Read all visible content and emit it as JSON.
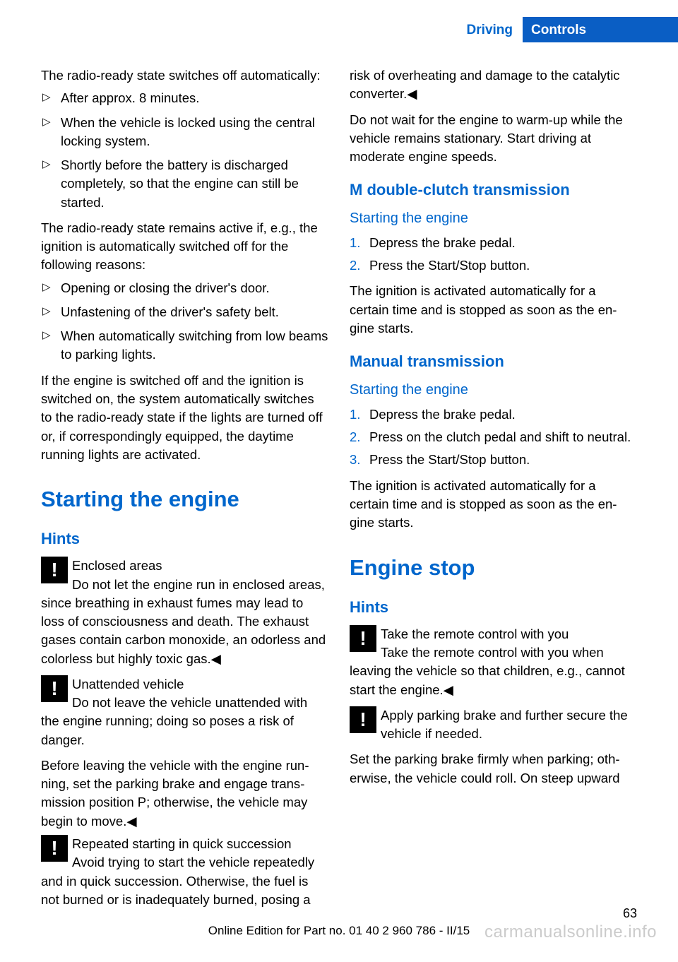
{
  "header": {
    "left": "Driving",
    "right": "Controls"
  },
  "colors": {
    "accent": "#0066cc",
    "header_bg": "#0a5ec4",
    "text": "#000000",
    "bg": "#ffffff"
  },
  "page_number": "63",
  "footer": "Online Edition for Part no. 01 40 2 960 786 - II/15",
  "watermark": "carmanualsonline.info",
  "p_intro1": "The radio-ready state switches off automati­cally:",
  "b1_1": "After approx. 8 minutes.",
  "b1_2": "When the vehicle is locked using the cen­tral locking system.",
  "b1_3": "Shortly before the battery is discharged completely, so that the engine can still be started.",
  "p_intro2": "The radio-ready state remains active if, e.g., the ignition is automatically switched off for the following reasons:",
  "b2_1": "Opening or closing the driver's door.",
  "b2_2": "Unfastening of the driver's safety belt.",
  "b2_3": "When automatically switching from low beams to parking lights.",
  "p_intro3": "If the engine is switched off and the ignition is switched on, the system automatically switches to the radio-ready state if the lights are turned off or, if correspondingly equipped, the daytime running lights are activated.",
  "h_starting": "Starting the engine",
  "h_hints1": "Hints",
  "w1_title": "Enclosed areas",
  "w1_body": "Do not let the engine run in enclosed areas, since breathing in exhaust fumes may lead to loss of consciousness and death. The exhaust gases contain carbon monoxide, an odorless and colorless but highly toxic gas.◀",
  "w2_title": "Unattended vehicle",
  "w2_body1": "Do not leave the vehicle unattended with the engine running; doing so poses a risk of danger.",
  "w2_body2": "Before leaving the vehicle with the engine run­ning, set the parking brake and engage trans­mission position P; otherwise, the vehicle may begin to move.◀",
  "w3_title": "Repeated starting in quick succession",
  "w3_body": "Avoid trying to start the vehicle repeat­edly and in quick succession. Otherwise, the fuel is not burned or is inadequately burned, posing a risk of overheating and damage to the catalytic converter.◀",
  "p_warmup": "Do not wait for the engine to warm-up while the vehicle remains stationary. Start driving at moderate engine speeds.",
  "h_mdct": "M double-clutch transmission",
  "h_start_eng1": "Starting the engine",
  "n1_1": "Depress the brake pedal.",
  "n1_2": "Press the Start/Stop button.",
  "p_ign1": "The ignition is activated automatically for a certain time and is stopped as soon as the en­gine starts.",
  "h_manual": "Manual transmission",
  "h_start_eng2": "Starting the engine",
  "n2_1": "Depress the brake pedal.",
  "n2_2": "Press on the clutch pedal and shift to neu­tral.",
  "n2_3": "Press the Start/Stop button.",
  "p_ign2": "The ignition is activated automatically for a certain time and is stopped as soon as the en­gine starts.",
  "h_engstop": "Engine stop",
  "h_hints2": "Hints",
  "w4_title": "Take the remote control with you",
  "w4_body": "Take the remote control with you when leaving the vehicle so that children, e.g., can­not start the engine.◀",
  "w5_title": "Apply parking brake and further secure the vehicle if needed.",
  "w5_body": "Set the parking brake firmly when parking; oth­erwise, the vehicle could roll. On steep upward",
  "num1": "1.",
  "num2": "2.",
  "num3": "3."
}
